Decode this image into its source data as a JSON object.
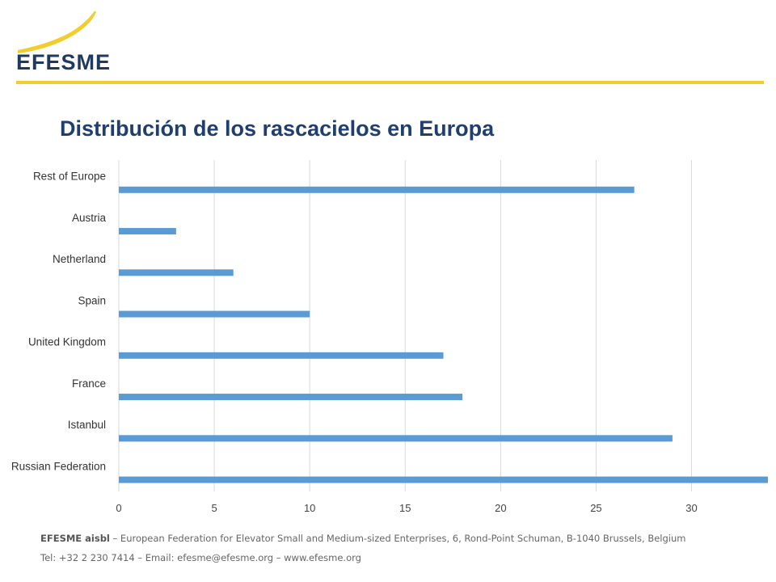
{
  "header": {
    "logo_text": "EFESME",
    "title": "Distribución de los rascacielos en Europa",
    "rule_color": "#f2cd2c"
  },
  "chart_data": {
    "type": "bar",
    "orientation": "horizontal",
    "title": "Distribución de los rascacielos en Europa",
    "categories": [
      "Rest of Europe",
      "Austria",
      "Netherland",
      "Spain",
      "United Kingdom",
      "France",
      "Istanbul",
      "Russian Federation"
    ],
    "values": [
      27,
      3,
      6,
      10,
      17,
      18,
      29,
      34
    ],
    "xlabel": "",
    "ylabel": "",
    "xlim": [
      0,
      34
    ],
    "xticks": [
      "0",
      "5",
      "10",
      "15",
      "20",
      "25",
      "30"
    ],
    "grid": true,
    "bar_color": "#5b9bd5"
  },
  "footer": {
    "org_name": "EFESME aisbl",
    "line1": " – European Federation for Elevator Small and Medium-sized Enterprises, 6, Rond-Point Schuman, B-1040 Brussels, Belgium",
    "line2": "Tel: +32 2 230 7414 – Email: efesme@efesme.org – www.efesme.org"
  }
}
